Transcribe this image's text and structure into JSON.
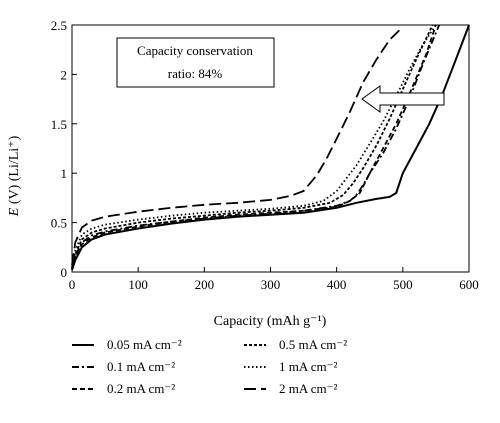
{
  "chart_data": {
    "type": "line",
    "title": "",
    "xlabel": "Capacity (mAh g⁻¹)",
    "ylabel": "E (V) (Li/Li⁺)",
    "ylabel_parts": {
      "italic": "E",
      "rest": " (V) (Li/Li⁺)"
    },
    "xlim": [
      0,
      600
    ],
    "ylim": [
      0,
      2.5
    ],
    "xticks": [
      "0",
      "100",
      "200",
      "300",
      "400",
      "500",
      "600"
    ],
    "yticks": [
      "0",
      "0.5",
      "1",
      "1.5",
      "2",
      "2.5"
    ],
    "annotation": {
      "line1": "Capacity conservation",
      "line2": "ratio: 84%"
    },
    "arrow_direction": "left",
    "legend_position": "bottom",
    "series": [
      {
        "name": "0.05 mA cm⁻²",
        "style": "solid",
        "x": [
          0,
          5,
          15,
          30,
          50,
          100,
          150,
          200,
          250,
          300,
          350,
          400,
          430,
          460,
          470,
          480,
          490,
          500,
          520,
          540,
          560,
          580,
          600
        ],
        "y": [
          0.02,
          0.12,
          0.25,
          0.33,
          0.38,
          0.44,
          0.49,
          0.53,
          0.56,
          0.58,
          0.6,
          0.65,
          0.7,
          0.74,
          0.75,
          0.76,
          0.8,
          1.0,
          1.25,
          1.5,
          1.8,
          2.15,
          2.5
        ]
      },
      {
        "name": "0.1 mA cm⁻²",
        "style": "dashdot",
        "x": [
          0,
          5,
          15,
          30,
          50,
          100,
          150,
          200,
          250,
          300,
          350,
          400,
          420,
          430,
          440,
          450,
          470,
          490,
          510,
          530,
          555
        ],
        "y": [
          0.03,
          0.16,
          0.3,
          0.37,
          0.41,
          0.47,
          0.51,
          0.54,
          0.57,
          0.59,
          0.62,
          0.67,
          0.72,
          0.78,
          0.88,
          1.0,
          1.2,
          1.45,
          1.75,
          2.1,
          2.5
        ]
      },
      {
        "name": "0.2 mA cm⁻²",
        "style": "dashed-short",
        "x": [
          0,
          5,
          15,
          30,
          50,
          100,
          150,
          200,
          250,
          300,
          350,
          400,
          420,
          435,
          450,
          470,
          490,
          510,
          535,
          550
        ],
        "y": [
          0.03,
          0.15,
          0.28,
          0.35,
          0.4,
          0.46,
          0.51,
          0.55,
          0.58,
          0.6,
          0.62,
          0.66,
          0.72,
          0.8,
          1.0,
          1.25,
          1.5,
          1.8,
          2.2,
          2.5
        ]
      },
      {
        "name": "0.5 mA cm⁻²",
        "style": "dashed-fine",
        "x": [
          0,
          5,
          15,
          30,
          50,
          100,
          150,
          200,
          250,
          300,
          350,
          390,
          410,
          425,
          440,
          460,
          480,
          500,
          520,
          545
        ],
        "y": [
          0.04,
          0.18,
          0.33,
          0.4,
          0.44,
          0.5,
          0.54,
          0.57,
          0.6,
          0.62,
          0.65,
          0.7,
          0.78,
          0.9,
          1.05,
          1.28,
          1.55,
          1.85,
          2.15,
          2.5
        ]
      },
      {
        "name": "1 mA cm⁻²",
        "style": "dotted",
        "x": [
          0,
          5,
          15,
          30,
          50,
          100,
          150,
          200,
          250,
          300,
          350,
          380,
          400,
          415,
          430,
          450,
          470,
          490,
          510,
          530,
          550
        ],
        "y": [
          0.05,
          0.22,
          0.38,
          0.44,
          0.48,
          0.53,
          0.57,
          0.6,
          0.62,
          0.64,
          0.67,
          0.72,
          0.82,
          0.95,
          1.08,
          1.3,
          1.52,
          1.78,
          2.05,
          2.3,
          2.5
        ]
      },
      {
        "name": "2 mA cm⁻²",
        "style": "dashed-long",
        "x": [
          0,
          5,
          15,
          30,
          50,
          100,
          150,
          200,
          250,
          300,
          330,
          350,
          370,
          385,
          400,
          420,
          440,
          460,
          480,
          500
        ],
        "y": [
          0.07,
          0.3,
          0.45,
          0.52,
          0.56,
          0.61,
          0.65,
          0.68,
          0.7,
          0.73,
          0.77,
          0.82,
          0.98,
          1.15,
          1.35,
          1.62,
          1.92,
          2.15,
          2.35,
          2.48
        ]
      }
    ]
  }
}
